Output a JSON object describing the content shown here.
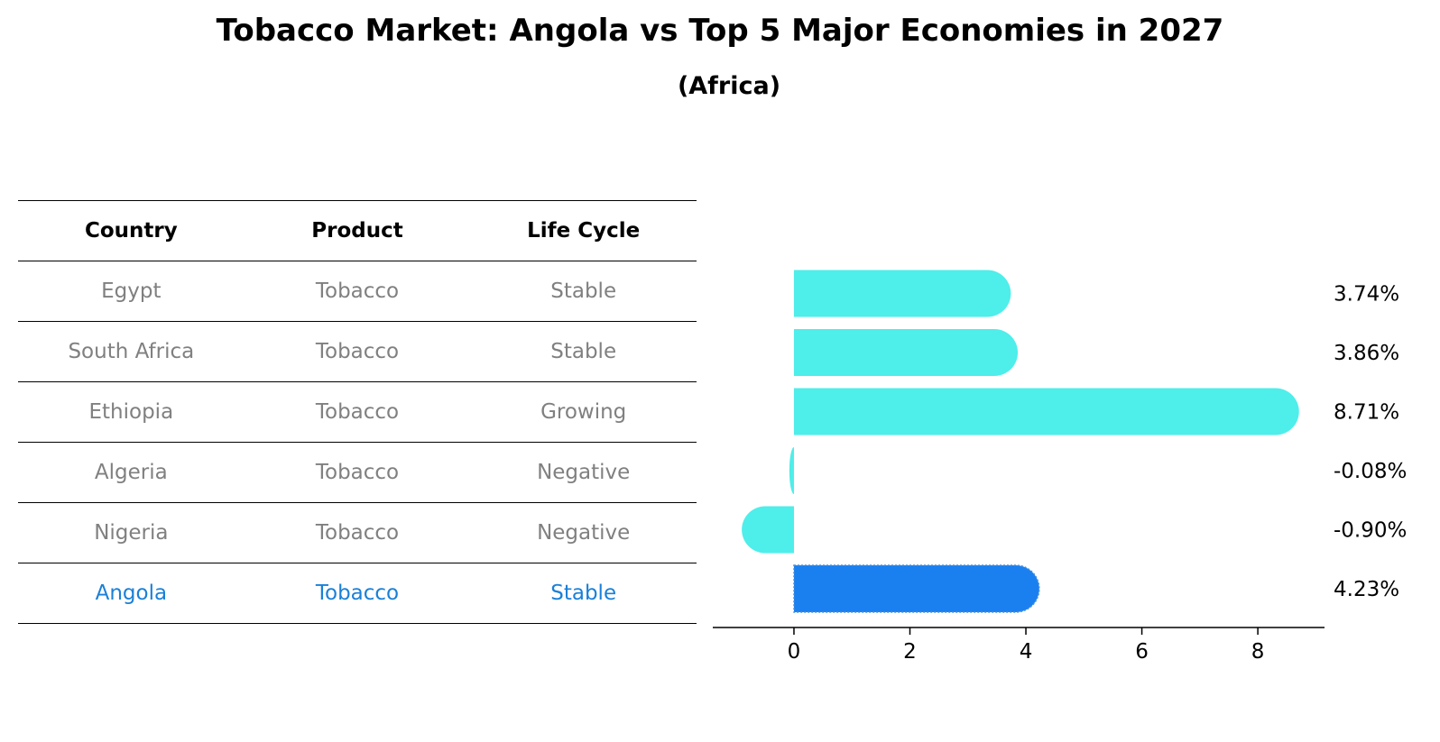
{
  "title": "Tobacco Market: Angola vs Top 5 Major Economies in 2027",
  "subtitle": "(Africa)",
  "table": {
    "headers": [
      "Country",
      "Product",
      "Life Cycle"
    ],
    "rows": [
      [
        "Egypt",
        "Tobacco",
        "Stable"
      ],
      [
        "South Africa",
        "Tobacco",
        "Stable"
      ],
      [
        "Ethiopia",
        "Tobacco",
        "Growing"
      ],
      [
        "Algeria",
        "Tobacco",
        "Negative"
      ],
      [
        "Nigeria",
        "Tobacco",
        "Negative"
      ],
      [
        "Angola",
        "Tobacco",
        "Stable"
      ]
    ],
    "highlight_row": 5
  },
  "colors": {
    "bar": "#4eeeea",
    "highlight_bar": "#1a80f0",
    "highlight_text": "#1a80d8",
    "muted_text": "#808080"
  },
  "chart_data": {
    "type": "bar",
    "orientation": "horizontal",
    "categories": [
      "Egypt",
      "South Africa",
      "Ethiopia",
      "Algeria",
      "Nigeria",
      "Angola"
    ],
    "values": [
      3.74,
      3.86,
      8.71,
      -0.08,
      -0.9,
      4.23
    ],
    "value_labels": [
      "3.74%",
      "3.86%",
      "8.71%",
      "-0.08%",
      "-0.90%",
      "4.23%"
    ],
    "highlight_index": 5,
    "xlim": [
      -1.4,
      9.15
    ],
    "xticks": [
      0,
      2,
      4,
      6,
      8
    ],
    "xlabel": "",
    "ylabel": "",
    "grid": false
  }
}
